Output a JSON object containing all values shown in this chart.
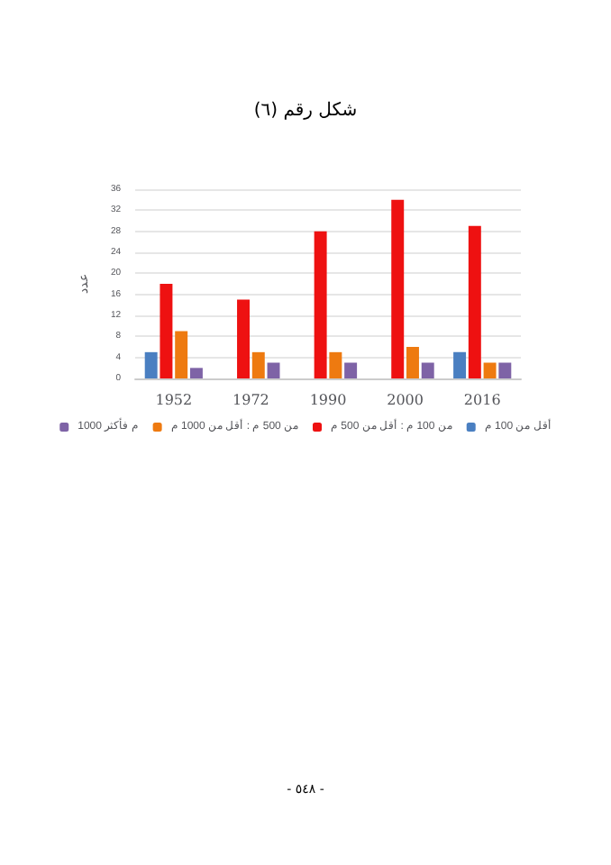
{
  "chart_data": {
    "type": "bar",
    "title": "شكل رقم (٦)",
    "ylabel": "عدد",
    "categories": [
      "1952",
      "1972",
      "1990",
      "2000",
      "2016"
    ],
    "series": [
      {
        "name": "أقل من 100 م",
        "color": "#4a7fc1",
        "values": [
          5,
          0,
          0,
          0,
          5
        ]
      },
      {
        "name": "من 100 م : أقل من 500 م",
        "color": "#ee1111",
        "values": [
          18,
          15,
          28,
          34,
          29
        ]
      },
      {
        "name": "من 500 م : أقل من 1000 م",
        "color": "#ee7a10",
        "values": [
          9,
          5,
          5,
          6,
          3
        ]
      },
      {
        "name": "1000 م فأكثر",
        "color": "#7e63a6",
        "values": [
          2,
          3,
          3,
          3,
          3
        ]
      }
    ],
    "ylim": [
      0,
      36
    ],
    "yticks": [
      0,
      4,
      8,
      12,
      16,
      20,
      24,
      28,
      32,
      36
    ],
    "grid": "y",
    "legend": "bottom",
    "annotations": [
      "- ٥٤٨ -"
    ]
  }
}
